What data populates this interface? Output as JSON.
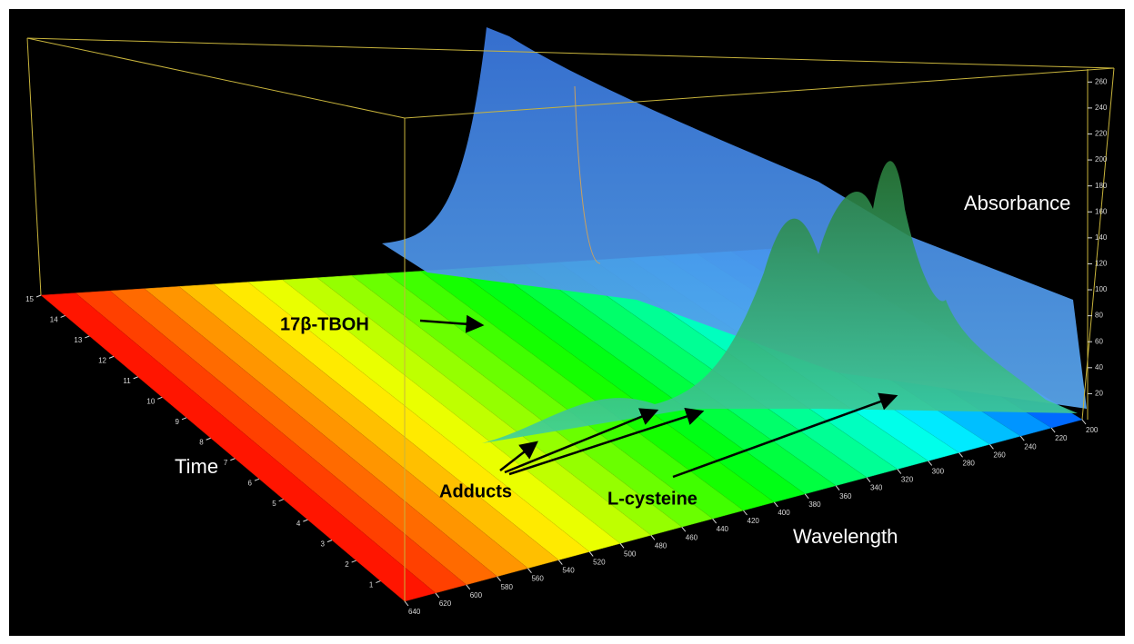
{
  "chart_data": {
    "type": "surface3d",
    "x_label": "Wavelength",
    "y_label": "Time",
    "z_label": "Absorbance",
    "xlim": [
      200,
      640
    ],
    "xticks": [
      200,
      220,
      240,
      260,
      280,
      300,
      320,
      340,
      360,
      380,
      400,
      420,
      440,
      460,
      480,
      500,
      520,
      540,
      560,
      580,
      600,
      620,
      640
    ],
    "ylim": [
      0,
      15
    ],
    "yticks": [
      1,
      2,
      3,
      4,
      5,
      6,
      7,
      8,
      9,
      10,
      11,
      12,
      13,
      14,
      15
    ],
    "zlim": [
      0,
      270
    ],
    "zticks": [
      20,
      40,
      60,
      80,
      100,
      120,
      140,
      160,
      180,
      200,
      220,
      240,
      260
    ],
    "annotations": [
      "17β-TBOH",
      "Adducts",
      "L-cysteine"
    ]
  }
}
